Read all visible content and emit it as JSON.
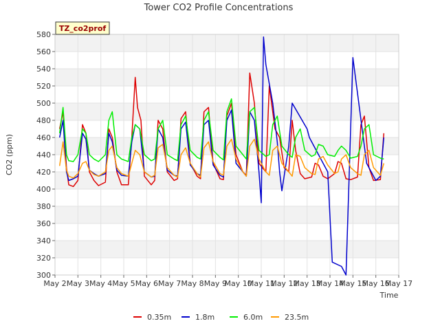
{
  "chart_data": {
    "type": "line",
    "title": "Tower CO2 Profile Concentrations",
    "xlabel": "Time",
    "ylabel": "CO2 (ppm)",
    "ylim": [
      300,
      580
    ],
    "yticks": [
      300,
      320,
      340,
      360,
      380,
      400,
      420,
      440,
      460,
      480,
      500,
      520,
      540,
      560,
      580
    ],
    "xlim": [
      0,
      15
    ],
    "xticks": [
      0,
      1,
      2,
      3,
      4,
      5,
      6,
      7,
      8,
      9,
      10,
      11,
      12,
      13,
      14,
      15
    ],
    "xticklabels": [
      "May 2",
      "May 3",
      "May 4",
      "May 5",
      "May 6",
      "May 7",
      "May 8",
      "May 9",
      "May 10",
      "May 11",
      "May 12",
      "May 13",
      "May 14",
      "May 15",
      "May 16",
      "May 17"
    ],
    "grid": true,
    "legend_position": "bottom",
    "site_label": "TZ_co2prof",
    "series": [
      {
        "name": "0.35m",
        "color": "#dd0000",
        "x": [
          0.2,
          0.35,
          0.5,
          0.6,
          0.8,
          1.0,
          1.2,
          1.35,
          1.5,
          1.7,
          1.9,
          2.2,
          2.35,
          2.5,
          2.7,
          2.9,
          3.2,
          3.35,
          3.5,
          3.6,
          3.75,
          3.9,
          4.2,
          4.35,
          4.5,
          4.7,
          4.9,
          5.2,
          5.35,
          5.5,
          5.7,
          5.9,
          6.2,
          6.35,
          6.5,
          6.7,
          6.9,
          7.2,
          7.35,
          7.5,
          7.7,
          7.9,
          8.2,
          8.35,
          8.5,
          8.7,
          8.9,
          9.2,
          9.35,
          9.5,
          9.6,
          9.8,
          10.0,
          10.2,
          10.35,
          10.5,
          10.7,
          10.9,
          11.2,
          11.35,
          11.5,
          11.7,
          11.9,
          12.2,
          12.35,
          12.5,
          12.7,
          12.9,
          13.2,
          13.35,
          13.5,
          13.7,
          13.9,
          14.2,
          14.35
        ],
        "y": [
          470,
          490,
          425,
          405,
          403,
          410,
          475,
          465,
          420,
          410,
          404,
          408,
          470,
          460,
          420,
          405,
          405,
          460,
          530,
          495,
          480,
          415,
          405,
          410,
          480,
          470,
          420,
          410,
          412,
          482,
          490,
          430,
          415,
          412,
          490,
          495,
          430,
          412,
          411,
          485,
          500,
          440,
          420,
          416,
          535,
          500,
          430,
          420,
          520,
          490,
          470,
          460,
          425,
          420,
          480,
          445,
          418,
          412,
          414,
          430,
          428,
          415,
          412,
          418,
          432,
          430,
          412,
          411,
          414,
          475,
          485,
          425,
          410,
          411,
          465
        ]
      },
      {
        "name": "1.8m",
        "color": "#0000cc",
        "x": [
          0.2,
          0.35,
          0.5,
          0.6,
          0.8,
          1.0,
          1.2,
          1.35,
          1.5,
          1.7,
          1.9,
          2.2,
          2.35,
          2.5,
          2.7,
          2.9,
          3.2,
          3.35,
          3.5,
          3.7,
          3.9,
          4.2,
          4.35,
          4.5,
          4.7,
          4.9,
          5.2,
          5.35,
          5.5,
          5.7,
          5.9,
          6.2,
          6.35,
          6.5,
          6.7,
          6.9,
          7.2,
          7.35,
          7.5,
          7.7,
          7.9,
          8.2,
          8.35,
          8.5,
          8.7,
          8.9,
          9.0,
          9.1,
          9.2,
          9.5,
          9.7,
          9.8,
          9.9,
          10.2,
          10.35,
          11.0,
          11.1,
          11.5,
          11.9,
          12.1,
          12.5,
          12.7,
          13.0,
          13.5,
          13.6,
          13.8,
          14.0,
          14.2,
          14.35
        ],
        "y": [
          460,
          480,
          420,
          410,
          412,
          415,
          465,
          458,
          422,
          418,
          415,
          418,
          465,
          455,
          422,
          416,
          415,
          455,
          475,
          470,
          420,
          414,
          415,
          470,
          460,
          422,
          416,
          415,
          470,
          478,
          428,
          418,
          416,
          475,
          480,
          428,
          416,
          414,
          480,
          492,
          430,
          420,
          415,
          490,
          480,
          420,
          384,
          577,
          545,
          500,
          455,
          420,
          398,
          450,
          500,
          470,
          460,
          440,
          420,
          315,
          310,
          300,
          553,
          450,
          430,
          420,
          410,
          415,
          460
        ]
      },
      {
        "name": "6.0m",
        "color": "#00ee00",
        "x": [
          0.2,
          0.35,
          0.5,
          0.6,
          0.8,
          1.0,
          1.2,
          1.35,
          1.5,
          1.7,
          1.9,
          2.2,
          2.35,
          2.5,
          2.7,
          2.9,
          3.2,
          3.35,
          3.5,
          3.7,
          3.9,
          4.2,
          4.35,
          4.5,
          4.7,
          4.9,
          5.2,
          5.35,
          5.5,
          5.7,
          5.9,
          6.2,
          6.35,
          6.5,
          6.7,
          6.9,
          7.2,
          7.35,
          7.5,
          7.7,
          7.9,
          8.2,
          8.35,
          8.5,
          8.7,
          8.9,
          9.2,
          9.35,
          9.5,
          9.7,
          9.9,
          10.2,
          10.35,
          10.5,
          10.7,
          10.9,
          11.2,
          11.35,
          11.5,
          11.7,
          11.9,
          12.2,
          12.35,
          12.5,
          12.7,
          12.9,
          13.2,
          13.35,
          13.5,
          13.7,
          13.9,
          14.2,
          14.35
        ],
        "y": [
          465,
          495,
          440,
          433,
          432,
          440,
          470,
          465,
          440,
          435,
          432,
          440,
          480,
          490,
          440,
          435,
          432,
          460,
          475,
          470,
          440,
          433,
          435,
          470,
          480,
          440,
          435,
          433,
          475,
          485,
          445,
          437,
          435,
          480,
          490,
          445,
          437,
          434,
          490,
          505,
          450,
          440,
          435,
          490,
          495,
          445,
          438,
          440,
          475,
          485,
          450,
          440,
          437,
          460,
          470,
          445,
          438,
          440,
          452,
          450,
          440,
          438,
          445,
          450,
          445,
          436,
          438,
          450,
          470,
          475,
          440,
          436,
          435
        ]
      },
      {
        "name": "23.5m",
        "color": "#ff9900",
        "x": [
          0.2,
          0.35,
          0.5,
          0.6,
          0.8,
          1.0,
          1.2,
          1.35,
          1.5,
          1.7,
          1.9,
          2.2,
          2.35,
          2.5,
          2.7,
          2.9,
          3.2,
          3.35,
          3.5,
          3.7,
          3.9,
          4.2,
          4.35,
          4.5,
          4.7,
          4.9,
          5.2,
          5.35,
          5.5,
          5.7,
          5.9,
          6.2,
          6.35,
          6.5,
          6.7,
          6.9,
          7.2,
          7.35,
          7.5,
          7.7,
          7.9,
          8.2,
          8.35,
          8.5,
          8.7,
          8.9,
          9.2,
          9.35,
          9.5,
          9.7,
          9.9,
          10.2,
          10.35,
          10.5,
          10.7,
          10.9,
          11.2,
          11.35,
          11.5,
          11.7,
          11.9,
          12.2,
          12.35,
          12.5,
          12.7,
          12.9,
          13.2,
          13.35,
          13.5,
          13.7,
          13.9,
          14.2,
          14.35
        ],
        "y": [
          427,
          455,
          422,
          415,
          413,
          418,
          430,
          432,
          422,
          417,
          415,
          420,
          445,
          450,
          425,
          418,
          415,
          430,
          445,
          440,
          420,
          414,
          416,
          448,
          452,
          425,
          416,
          414,
          440,
          448,
          430,
          418,
          414,
          448,
          455,
          432,
          418,
          416,
          450,
          458,
          435,
          420,
          415,
          450,
          458,
          435,
          420,
          416,
          445,
          450,
          430,
          420,
          415,
          440,
          438,
          425,
          418,
          417,
          435,
          438,
          428,
          418,
          420,
          435,
          440,
          425,
          418,
          416,
          440,
          445,
          425,
          416,
          430
        ]
      }
    ]
  }
}
